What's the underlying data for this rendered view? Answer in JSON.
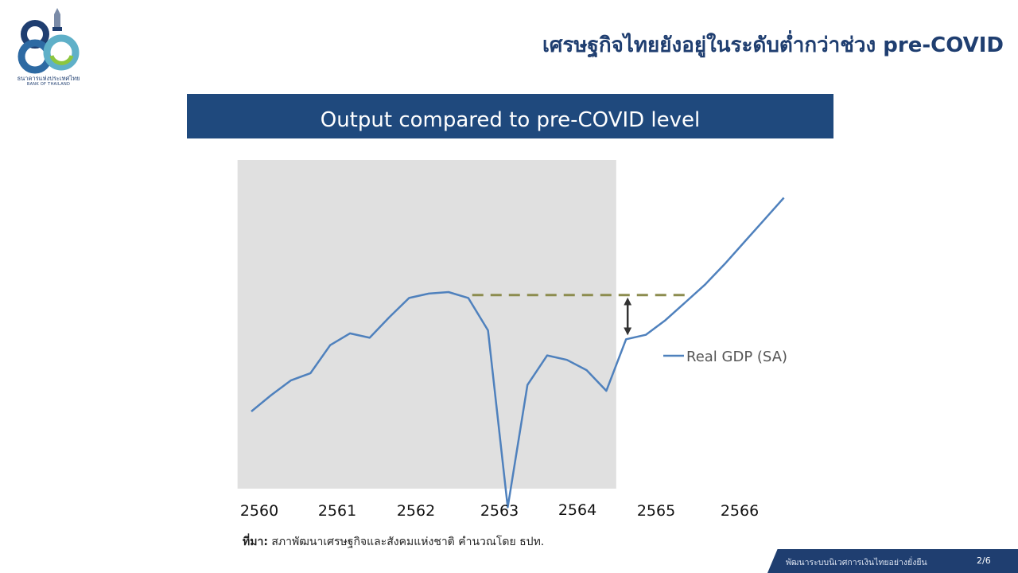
{
  "header": {
    "title": "เศรษฐกิจไทยยังอยู่ในระดับต่ำกว่าช่วง pre-COVID",
    "logo_th": "ธนาคารแห่งประเทศไทย",
    "logo_en": "BANK OF THAILAND"
  },
  "banner": {
    "title": "Output compared to pre-COVID level"
  },
  "chart_data": {
    "type": "line",
    "title": "Output compared to pre-COVID level",
    "categories": [
      "2560",
      "2561",
      "2562",
      "2563",
      "2564",
      "2565",
      "2566"
    ],
    "x_unit": "quarter index (0 = 2560 Q1)",
    "series": [
      {
        "name": "Real GDP (SA)",
        "color": "#4f81bd",
        "x": [
          0,
          1,
          2,
          3,
          4,
          5,
          6,
          7,
          8,
          9,
          10,
          11,
          12,
          13,
          14,
          15,
          16,
          17,
          18,
          19,
          20,
          21,
          22,
          23,
          24,
          25,
          26,
          27
        ],
        "values": [
          100.0,
          101.1,
          102.1,
          102.6,
          104.5,
          105.3,
          105.0,
          106.4,
          107.7,
          108.0,
          108.1,
          107.7,
          105.5,
          93.5,
          101.8,
          103.8,
          103.5,
          102.8,
          101.4,
          104.9,
          105.2,
          106.2,
          107.4,
          108.6,
          110.0,
          111.5,
          113.0,
          114.5
        ]
      }
    ],
    "pre_covid_level": 107.9,
    "pre_covid_line_color": "#8c8c4e",
    "shaded_region": {
      "from_x": -0.7,
      "to_x": 18.5,
      "color": "#e0e0e0"
    },
    "gap_arrow": {
      "x": 19,
      "from": 105.0,
      "to": 107.9
    },
    "legend_position": "right",
    "grid": false
  },
  "source": {
    "label": "ที่มา:",
    "text": " สภาพัฒนาเศรษฐกิจและสังคมแห่งชาติ คำนวณโดย ธปท."
  },
  "footer": {
    "text": "พัฒนาระบบนิเวศการเงินไทยอย่างยั่งยืน",
    "page": "2/6"
  }
}
